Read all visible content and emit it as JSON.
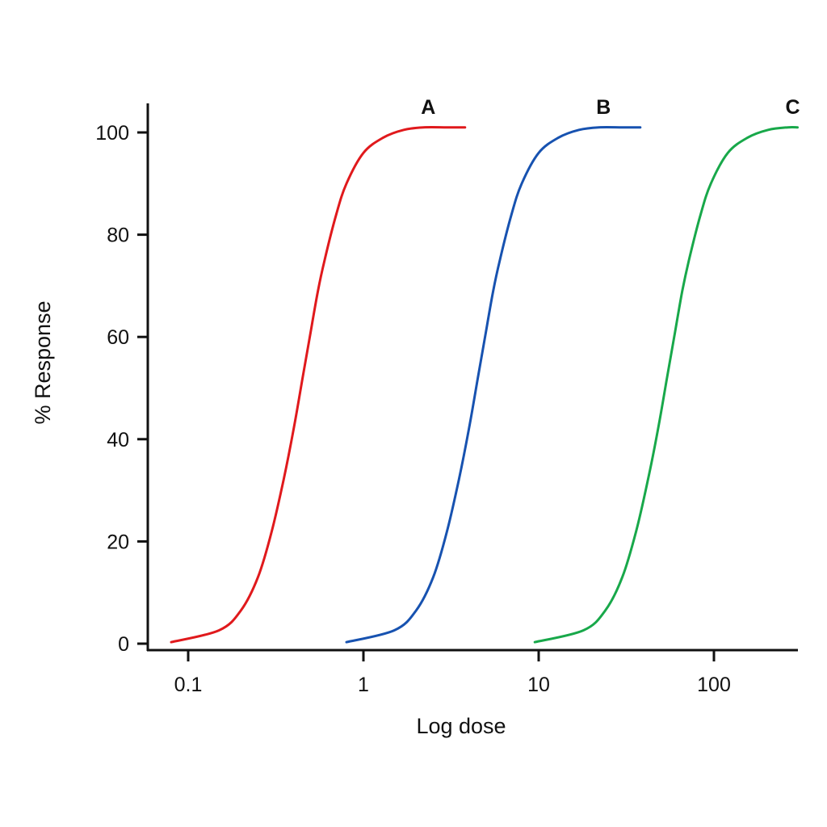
{
  "chart_data": {
    "type": "line",
    "xlabel": "Log dose",
    "ylabel": "% Response",
    "x_scale": "log",
    "xlim": [
      0.07,
      300
    ],
    "ylim": [
      0,
      101
    ],
    "x_ticks": [
      {
        "value": 0.1,
        "label": "0.1"
      },
      {
        "value": 1,
        "label": "1"
      },
      {
        "value": 10,
        "label": "10"
      },
      {
        "value": 100,
        "label": "100"
      }
    ],
    "y_ticks": [
      {
        "value": 0,
        "label": "0"
      },
      {
        "value": 20,
        "label": "20"
      },
      {
        "value": 40,
        "label": "40"
      },
      {
        "value": 60,
        "label": "60"
      },
      {
        "value": 80,
        "label": "80"
      },
      {
        "value": 100,
        "label": "100"
      }
    ],
    "grid": false,
    "legend": "none",
    "series": [
      {
        "name": "A",
        "color": "#e0191c",
        "x": [
          0.08,
          0.15,
          0.2,
          0.25,
          0.3,
          0.35,
          0.4,
          0.45,
          0.5,
          0.55,
          0.6,
          0.7,
          0.8,
          1.0,
          1.3,
          1.7,
          2.2,
          3.0,
          3.8
        ],
        "y": [
          0.3,
          2.6,
          6.5,
          13,
          22,
          32,
          42,
          52,
          61,
          69,
          75,
          84,
          90,
          96,
          99,
          100.5,
          101,
          101,
          101
        ]
      },
      {
        "name": "B",
        "color": "#1752b0",
        "x": [
          0.8,
          1.5,
          2.0,
          2.5,
          3.0,
          3.5,
          4.0,
          4.5,
          5.0,
          5.5,
          6.0,
          7.0,
          8.0,
          10,
          13,
          17,
          22,
          30,
          38
        ],
        "y": [
          0.3,
          2.6,
          6.5,
          13,
          22,
          32,
          42,
          52,
          61,
          69,
          75,
          84,
          90,
          96,
          99,
          100.5,
          101,
          101,
          101
        ]
      },
      {
        "name": "C",
        "color": "#18a84a",
        "x": [
          9.5,
          18,
          24,
          30,
          36,
          42,
          48,
          54,
          60,
          66,
          72,
          84,
          96,
          120,
          156,
          204,
          264,
          300
        ],
        "y": [
          0.3,
          2.6,
          6.5,
          13,
          22,
          32,
          42,
          52,
          61,
          69,
          75,
          84,
          90,
          96,
          99,
          100.5,
          101,
          101
        ]
      }
    ]
  }
}
